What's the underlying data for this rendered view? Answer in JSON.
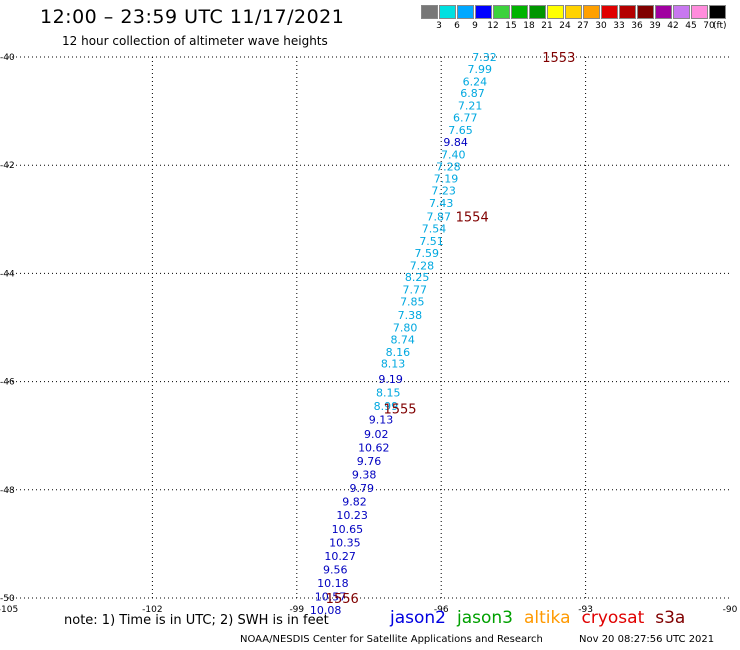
{
  "header": {
    "title": "12:00 – 23:59 UTC 11/17/2021",
    "subtitle": "12 hour collection of altimeter wave heights"
  },
  "legend": {
    "colors": [
      "#777777",
      "#00e0e0",
      "#00a8ff",
      "#0000ff",
      "#3cd23c",
      "#00b400",
      "#009600",
      "#ffff00",
      "#ffd200",
      "#ffa000",
      "#e00000",
      "#b40000",
      "#800000",
      "#a000a0",
      "#c878f0",
      "#ff8cdc",
      "#000000"
    ],
    "labels": [
      "3",
      "6",
      "9",
      "12",
      "15",
      "18",
      "21",
      "24",
      "27",
      "30",
      "33",
      "36",
      "39",
      "42",
      "45",
      "70"
    ],
    "unit": "(ft)"
  },
  "map": {
    "x_ticks": [
      "-105",
      "-102",
      "-99",
      "-96",
      "-93",
      "-90"
    ],
    "y_ticks": [
      "-40",
      "-42",
      "-44",
      "-46",
      "-48",
      "-50"
    ],
    "lon_range": [
      -105,
      -90
    ],
    "lat_range": [
      -50,
      -40
    ]
  },
  "pass_labels": [
    {
      "text": "1553",
      "lon": -93.9,
      "lat": -40.0
    },
    {
      "text": "1554",
      "lon": -95.7,
      "lat": -42.95
    },
    {
      "text": "1555",
      "lon": -97.2,
      "lat": -46.5
    },
    {
      "text": "1556",
      "lon": -98.4,
      "lat": -50.0
    }
  ],
  "track_color": "#00a8e0",
  "deep_color": "#0000c0",
  "pass_color": "#800000",
  "observations": [
    {
      "text": "7.32",
      "lon": -95.1,
      "lat": -40.0
    },
    {
      "text": "7.99",
      "lon": -95.2,
      "lat": -40.22
    },
    {
      "text": "6.24",
      "lon": -95.3,
      "lat": -40.45
    },
    {
      "text": "6.87",
      "lon": -95.35,
      "lat": -40.67
    },
    {
      "text": "7.21",
      "lon": -95.4,
      "lat": -40.9
    },
    {
      "text": "6.77",
      "lon": -95.5,
      "lat": -41.12
    },
    {
      "text": "7.65",
      "lon": -95.6,
      "lat": -41.35
    },
    {
      "text": "9.84",
      "lon": -95.7,
      "lat": -41.57
    },
    {
      "text": "7.40",
      "lon": -95.75,
      "lat": -41.8
    },
    {
      "text": "7.28",
      "lon": -95.85,
      "lat": -42.02
    },
    {
      "text": "7.19",
      "lon": -95.9,
      "lat": -42.25
    },
    {
      "text": "7.23",
      "lon": -95.95,
      "lat": -42.47
    },
    {
      "text": "7.43",
      "lon": -96.0,
      "lat": -42.7
    },
    {
      "text": "7.87",
      "lon": -96.05,
      "lat": -42.95
    },
    {
      "text": "7.54",
      "lon": -96.15,
      "lat": -43.17
    },
    {
      "text": "7.51",
      "lon": -96.2,
      "lat": -43.4
    },
    {
      "text": "7.59",
      "lon": -96.3,
      "lat": -43.62
    },
    {
      "text": "7.28",
      "lon": -96.4,
      "lat": -43.85
    },
    {
      "text": "8.25",
      "lon": -96.5,
      "lat": -44.07
    },
    {
      "text": "7.77",
      "lon": -96.55,
      "lat": -44.3
    },
    {
      "text": "7.85",
      "lon": -96.6,
      "lat": -44.52
    },
    {
      "text": "7.38",
      "lon": -96.65,
      "lat": -44.77
    },
    {
      "text": "7.80",
      "lon": -96.75,
      "lat": -45.0
    },
    {
      "text": "8.74",
      "lon": -96.8,
      "lat": -45.22
    },
    {
      "text": "8.16",
      "lon": -96.9,
      "lat": -45.45
    },
    {
      "text": "8.13",
      "lon": -97.0,
      "lat": -45.67
    },
    {
      "text": "9.19",
      "lon": -97.05,
      "lat": -45.95
    },
    {
      "text": "8.15",
      "lon": -97.1,
      "lat": -46.2
    },
    {
      "text": "8.99",
      "lon": -97.15,
      "lat": -46.45
    },
    {
      "text": "9.13",
      "lon": -97.25,
      "lat": -46.7
    },
    {
      "text": "9.02",
      "lon": -97.35,
      "lat": -46.97
    },
    {
      "text": "10.62",
      "lon": -97.4,
      "lat": -47.22
    },
    {
      "text": "9.76",
      "lon": -97.5,
      "lat": -47.47
    },
    {
      "text": "9.38",
      "lon": -97.6,
      "lat": -47.72
    },
    {
      "text": "9.79",
      "lon": -97.65,
      "lat": -47.97
    },
    {
      "text": "9.82",
      "lon": -97.8,
      "lat": -48.22
    },
    {
      "text": "10.23",
      "lon": -97.85,
      "lat": -48.47
    },
    {
      "text": "10.65",
      "lon": -97.95,
      "lat": -48.72
    },
    {
      "text": "10.35",
      "lon": -98.0,
      "lat": -48.97
    },
    {
      "text": "10.27",
      "lon": -98.1,
      "lat": -49.22
    },
    {
      "text": "9.56",
      "lon": -98.2,
      "lat": -49.47
    },
    {
      "text": "10.18",
      "lon": -98.25,
      "lat": -49.72
    },
    {
      "text": "10.57",
      "lon": -98.3,
      "lat": -49.97
    },
    {
      "text": "10.08",
      "lon": -98.4,
      "lat": -50.22
    }
  ],
  "footer": {
    "note": "note:  1) Time is in UTC;  2) SWH is in feet",
    "missions": [
      {
        "name": "jason2",
        "color": "#0000e0"
      },
      {
        "name": "jason3",
        "color": "#00a000"
      },
      {
        "name": "altika",
        "color": "#ff9900"
      },
      {
        "name": "cryosat",
        "color": "#e00000"
      },
      {
        "name": "s3a",
        "color": "#800000"
      }
    ],
    "credit": "NOAA/NESDIS Center for Satellite Applications and Research",
    "timestamp": "Nov 20 08:27:56 UTC 2021"
  }
}
